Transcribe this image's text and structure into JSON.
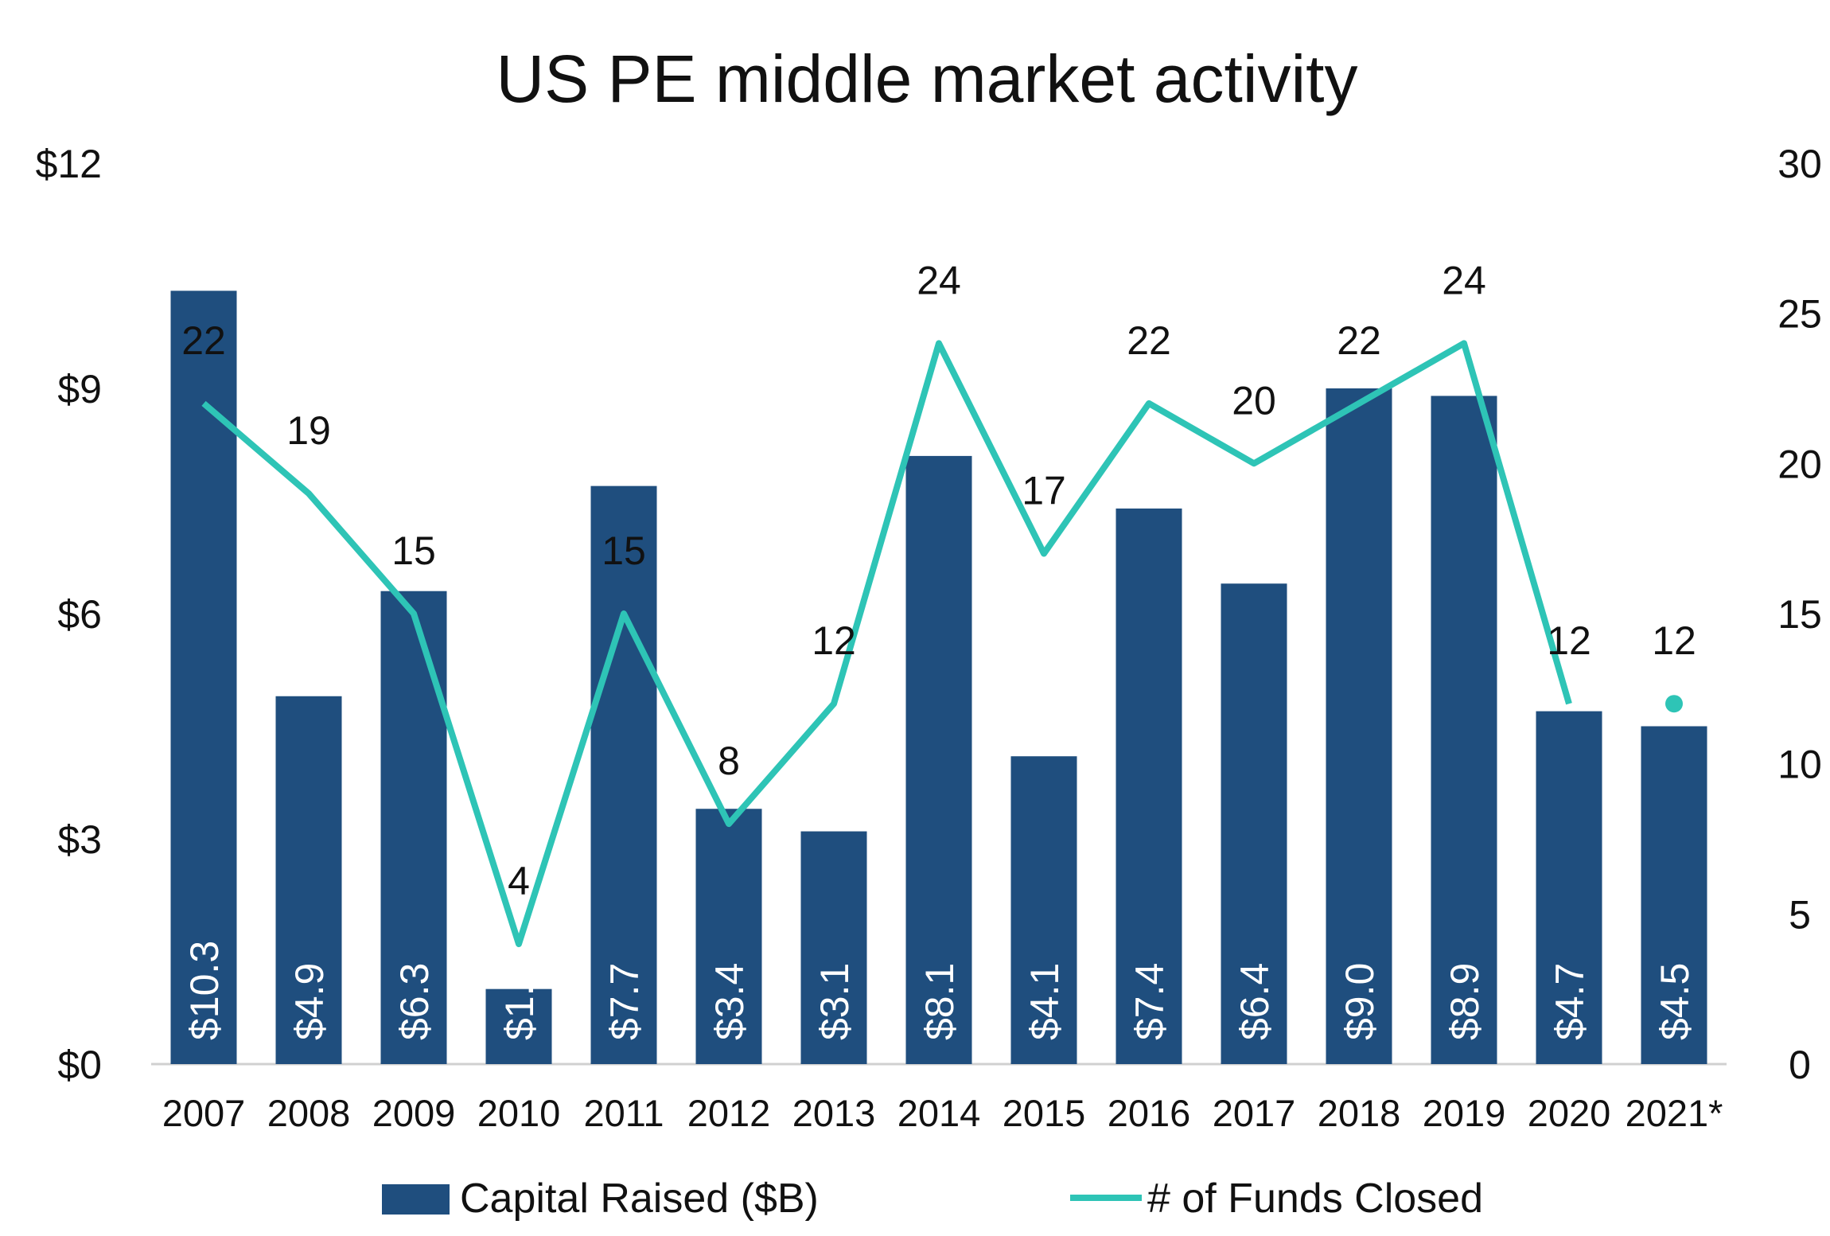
{
  "chart_data": {
    "type": "bar",
    "title": "US PE middle market activity",
    "categories": [
      "2007",
      "2008",
      "2009",
      "2010",
      "2011",
      "2012",
      "2013",
      "2014",
      "2015",
      "2016",
      "2017",
      "2018",
      "2019",
      "2020",
      "2021*"
    ],
    "series": [
      {
        "name": "Capital Raised ($B)",
        "type": "bar",
        "axis": "left",
        "values": [
          10.3,
          4.9,
          6.3,
          1.0,
          7.7,
          3.4,
          3.1,
          8.1,
          4.1,
          7.4,
          6.4,
          9.0,
          8.9,
          4.7,
          4.5
        ],
        "labels": [
          "$10.3",
          "$4.9",
          "$6.3",
          "$1.",
          "$7.7",
          "$3.4",
          "$3.1",
          "$8.1",
          "$4.1",
          "$7.4",
          "$6.4",
          "$9.0",
          "$8.9",
          "$4.7",
          "$4.5"
        ],
        "color": "#1f4e7e"
      },
      {
        "name": "# of Funds Closed",
        "type": "line",
        "axis": "right",
        "values": [
          22,
          19,
          15,
          4,
          15,
          8,
          12,
          24,
          17,
          22,
          20,
          22,
          24,
          12,
          12
        ],
        "labels": [
          "22",
          "19",
          "15",
          "4",
          "15",
          "8",
          "12",
          "24",
          "17",
          "22",
          "20",
          "22",
          "24",
          "12",
          "12"
        ],
        "color": "#2ec4b6"
      }
    ],
    "y_left": {
      "ylim": [
        0,
        12
      ],
      "ticks": [
        0,
        3,
        6,
        9,
        12
      ],
      "tick_labels": [
        "$0",
        "$3",
        "$6",
        "$9",
        "$12"
      ]
    },
    "y_right": {
      "ylim": [
        0,
        30
      ],
      "ticks": [
        0,
        5,
        10,
        15,
        20,
        25,
        30
      ],
      "tick_labels": [
        "0",
        "5",
        "10",
        "15",
        "20",
        "25",
        "30"
      ]
    },
    "grid": false,
    "legend": {
      "position": "bottom",
      "entries": [
        "Capital Raised ($B)",
        "# of Funds Closed"
      ]
    }
  }
}
